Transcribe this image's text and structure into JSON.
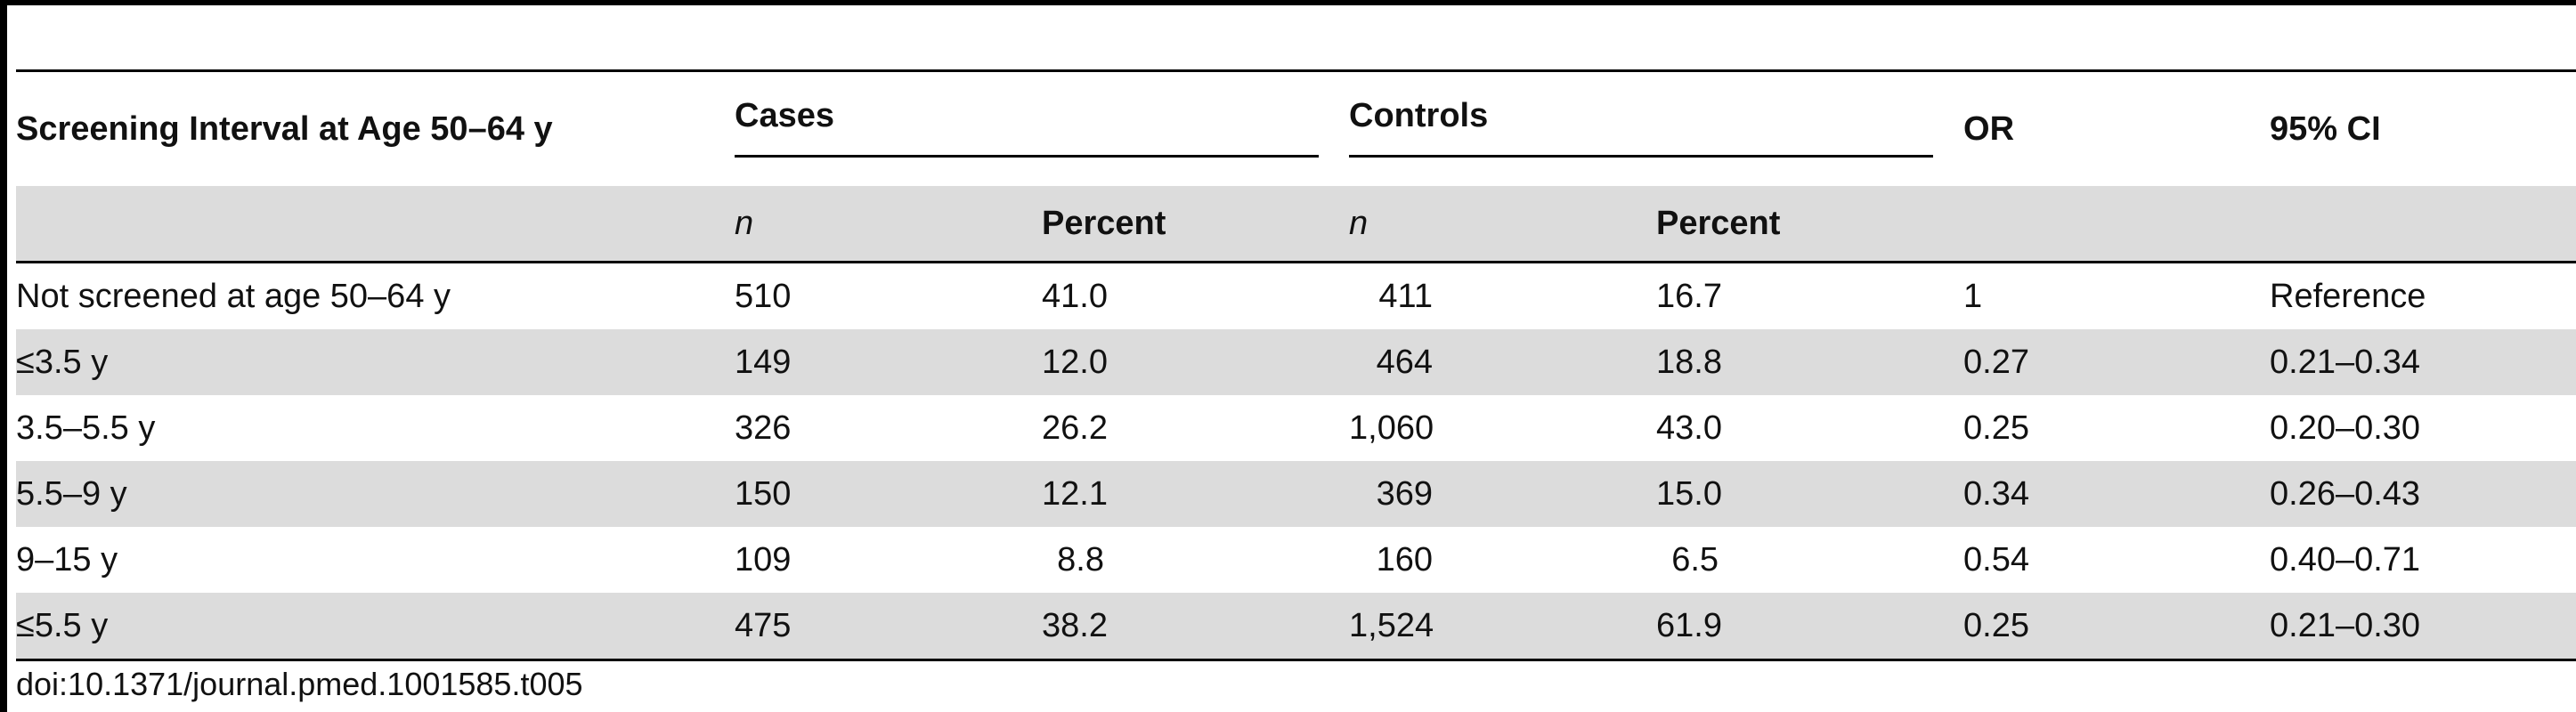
{
  "table": {
    "headers": {
      "interval": "Screening Interval at Age 50–64 y",
      "cases": "Cases",
      "controls": "Controls",
      "or": "OR",
      "ci": "95% CI",
      "n": "n",
      "percent": "Percent"
    },
    "rows": [
      {
        "interval": "Not screened at age 50–64 y",
        "cases_n": "510",
        "cases_pct": "41.0",
        "controls_n": "411",
        "controls_pct": "16.7",
        "or": "1",
        "ci": "Reference"
      },
      {
        "interval": "≤3.5 y",
        "cases_n": "149",
        "cases_pct": "12.0",
        "controls_n": "464",
        "controls_pct": "18.8",
        "or": "0.27",
        "ci": "0.21–0.34"
      },
      {
        "interval": "3.5–5.5 y",
        "cases_n": "326",
        "cases_pct": "26.2",
        "controls_n": "1,060",
        "controls_pct": "43.0",
        "or": "0.25",
        "ci": "0.20–0.30"
      },
      {
        "interval": "5.5–9 y",
        "cases_n": "150",
        "cases_pct": "12.1",
        "controls_n": "369",
        "controls_pct": "15.0",
        "or": "0.34",
        "ci": "0.26–0.43"
      },
      {
        "interval": "9–15 y",
        "cases_n": "109",
        "cases_pct": "8.8",
        "controls_n": "160",
        "controls_pct": "6.5",
        "or": "0.54",
        "ci": "0.40–0.71"
      },
      {
        "interval": "≤5.5 y",
        "cases_n": "475",
        "cases_pct": "38.2",
        "controls_n": "1,524",
        "controls_pct": "61.9",
        "or": "0.25",
        "ci": "0.21–0.30"
      }
    ]
  },
  "doi": "doi:10.1371/journal.pmed.1001585.t005"
}
